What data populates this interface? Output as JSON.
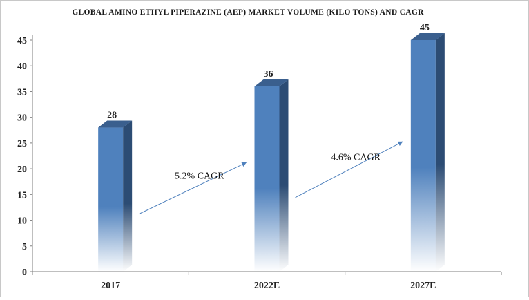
{
  "chart_data": {
    "type": "bar",
    "title": "GLOBAL AMINO ETHYL PIPERAZINE  (AEP) MARKET VOLUME (KILO TONS) AND CAGR",
    "xlabel": "",
    "ylabel": "",
    "categories": [
      "2017",
      "2022E",
      "2027E"
    ],
    "values": [
      28,
      36,
      45
    ],
    "data_labels": [
      "28",
      "36",
      "45"
    ],
    "ylim": [
      0,
      45
    ],
    "yticks": [
      0,
      5,
      10,
      15,
      20,
      25,
      30,
      35,
      40,
      45
    ],
    "grid": false,
    "legend": "none",
    "annotations": [
      {
        "text": "5.2% CAGR",
        "from": "2017",
        "to": "2022E"
      },
      {
        "text": "4.6% CAGR",
        "from": "2022E",
        "to": "2027E"
      }
    ],
    "colors": {
      "bar": "#4f81bd",
      "bar_side": "#2c4c74",
      "bar_top": "#3a5f8e",
      "arrow": "#4f81bd"
    }
  }
}
